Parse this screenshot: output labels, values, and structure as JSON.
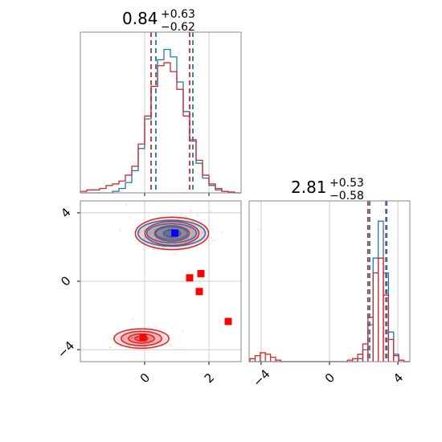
{
  "chart_data": [
    {
      "type": "histogram",
      "panel": "marginal-x",
      "title": {
        "value": "0.84",
        "plus": "+0.63",
        "minus": "−0.62"
      },
      "xlim": [
        -2,
        3
      ],
      "grid": true,
      "colors": {
        "blue": "#1f77b4",
        "red": "#d62728"
      },
      "blue_quantiles": [
        0.35,
        1.5
      ],
      "red_quantiles": [
        0.2,
        1.4
      ],
      "x": [
        -1.9,
        -1.7,
        -1.5,
        -1.3,
        -1.1,
        -0.9,
        -0.7,
        -0.5,
        -0.3,
        -0.1,
        0.1,
        0.3,
        0.5,
        0.7,
        0.9,
        1.1,
        1.3,
        1.5,
        1.7,
        1.9,
        2.1,
        2.3,
        2.5,
        2.7,
        2.9
      ],
      "series": [
        {
          "color": "#1f77b4",
          "values": [
            0,
            0,
            0,
            0,
            0,
            0.01,
            0.03,
            0.07,
            0.15,
            0.3,
            0.5,
            0.72,
            0.9,
            0.97,
            0.92,
            0.75,
            0.55,
            0.35,
            0.2,
            0.1,
            0.05,
            0.02,
            0.01,
            0.005,
            0
          ]
        },
        {
          "color": "#d62728",
          "values": [
            0.01,
            0.02,
            0.02,
            0.03,
            0.05,
            0.06,
            0.08,
            0.12,
            0.18,
            0.33,
            0.52,
            0.72,
            0.86,
            0.88,
            0.82,
            0.7,
            0.52,
            0.36,
            0.22,
            0.12,
            0.06,
            0.03,
            0.01,
            0.005,
            0
          ]
        }
      ]
    },
    {
      "type": "contour-scatter",
      "panel": "joint",
      "xlim": [
        -2,
        3
      ],
      "ylim": [
        -4.7,
        4.7
      ],
      "xticks": [
        "0",
        "2"
      ],
      "yticks": [
        "4",
        "0",
        "−4"
      ],
      "xtick_values": [
        0,
        2
      ],
      "ytick_values": [
        4,
        0,
        -4
      ],
      "grid": true,
      "blue_mode": {
        "x": 0.84,
        "y": 2.81,
        "sx": 0.55,
        "sy": 0.4
      },
      "red_modes": [
        {
          "x": 0.85,
          "y": 2.8,
          "sx": 0.6,
          "sy": 0.5
        },
        {
          "x": -0.1,
          "y": -3.35,
          "sx": 0.45,
          "sy": 0.3
        }
      ],
      "blue_squares": [
        [
          0.94,
          2.82
        ]
      ],
      "red_squares": [
        [
          -0.05,
          -3.3
        ],
        [
          1.4,
          0.2
        ],
        [
          1.75,
          0.45
        ],
        [
          1.7,
          -0.6
        ],
        [
          2.6,
          -2.35
        ]
      ]
    },
    {
      "type": "histogram",
      "panel": "marginal-y",
      "title": {
        "value": "2.81",
        "plus": "+0.53",
        "minus": "−0.58"
      },
      "xlim": [
        -4.7,
        4.7
      ],
      "xticks": [
        "−4",
        "0",
        "4"
      ],
      "xtick_values": [
        -4,
        0,
        4
      ],
      "grid": true,
      "blue_quantiles": [
        2.35,
        3.35
      ],
      "red_quantiles": [
        2.25,
        3.3
      ],
      "x": [
        -4.5,
        -4.2,
        -3.9,
        -3.6,
        -3.3,
        -3.0,
        -2.7,
        1.2,
        1.5,
        1.8,
        2.1,
        2.4,
        2.7,
        3.0,
        3.3,
        3.6,
        3.9,
        4.2
      ],
      "series": [
        {
          "color": "#1f77b4",
          "values": [
            0,
            0,
            0,
            0,
            0,
            0,
            0,
            0,
            0,
            0.02,
            0.08,
            0.25,
            0.7,
            0.95,
            0.6,
            0.2,
            0.05,
            0.01
          ]
        },
        {
          "color": "#d62728",
          "values": [
            0.02,
            0.04,
            0.06,
            0.05,
            0.03,
            0.01,
            0,
            0.01,
            0.02,
            0.05,
            0.12,
            0.3,
            0.6,
            0.7,
            0.45,
            0.15,
            0.04,
            0.01
          ]
        }
      ]
    }
  ]
}
